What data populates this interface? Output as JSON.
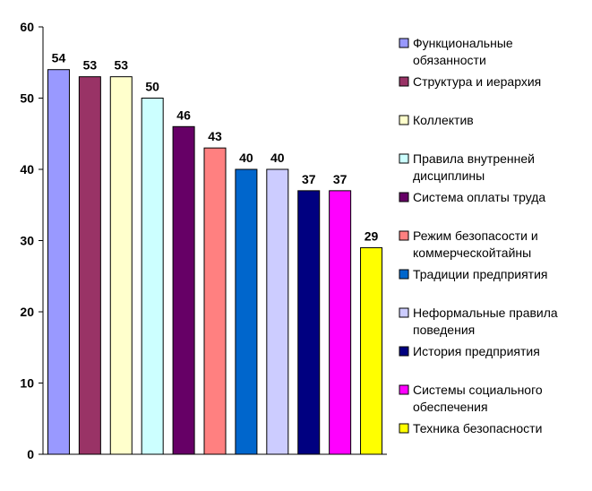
{
  "chart_data": {
    "type": "bar",
    "ylim": [
      0,
      60
    ],
    "yticks": [
      "0",
      "10",
      "20",
      "30",
      "40",
      "50",
      "60"
    ],
    "grid": false,
    "legend_position": "right",
    "series": [
      {
        "name": "Функциональные обязанности",
        "legend_lines": [
          "Функциональные",
          "обязанности"
        ],
        "value": 54,
        "label": "54",
        "color": "#9999ff"
      },
      {
        "name": "Структура и иерархия",
        "legend_lines": [
          "Структура и иерархия"
        ],
        "value": 53,
        "label": "53",
        "color": "#993366"
      },
      {
        "name": "Коллектив",
        "legend_lines": [
          "Коллектив"
        ],
        "value": 53,
        "label": "53",
        "color": "#ffffcc"
      },
      {
        "name": "Правила внутренней дисциплины",
        "legend_lines": [
          "Правила внутренней",
          "дисциплины"
        ],
        "value": 50,
        "label": "50",
        "color": "#ccffff"
      },
      {
        "name": "Система оплаты труда",
        "legend_lines": [
          "Система оплаты труда"
        ],
        "value": 46,
        "label": "46",
        "color": "#660066"
      },
      {
        "name": "Режим безопасости и коммерческойтайны",
        "legend_lines": [
          "Режим безопасости и",
          "коммерческойтайны"
        ],
        "value": 43,
        "label": "43",
        "color": "#ff8080"
      },
      {
        "name": "Традиции предприятия",
        "legend_lines": [
          "Традиции предприятия"
        ],
        "value": 40,
        "label": "40",
        "color": "#0066cc"
      },
      {
        "name": "Неформальные правила поведения",
        "legend_lines": [
          "Неформальные правила",
          "поведения"
        ],
        "value": 40,
        "label": "40",
        "color": "#ccccff"
      },
      {
        "name": "История предприятия",
        "legend_lines": [
          "История предприятия"
        ],
        "value": 37,
        "label": "37",
        "color": "#000080"
      },
      {
        "name": "Системы социального обеспечения",
        "legend_lines": [
          "Системы социального",
          "обеспечения"
        ],
        "value": 37,
        "label": "37",
        "color": "#ff00ff"
      },
      {
        "name": "Техника безопасности",
        "legend_lines": [
          "Техника безопасности"
        ],
        "value": 29,
        "label": "29",
        "color": "#ffff00"
      }
    ]
  }
}
